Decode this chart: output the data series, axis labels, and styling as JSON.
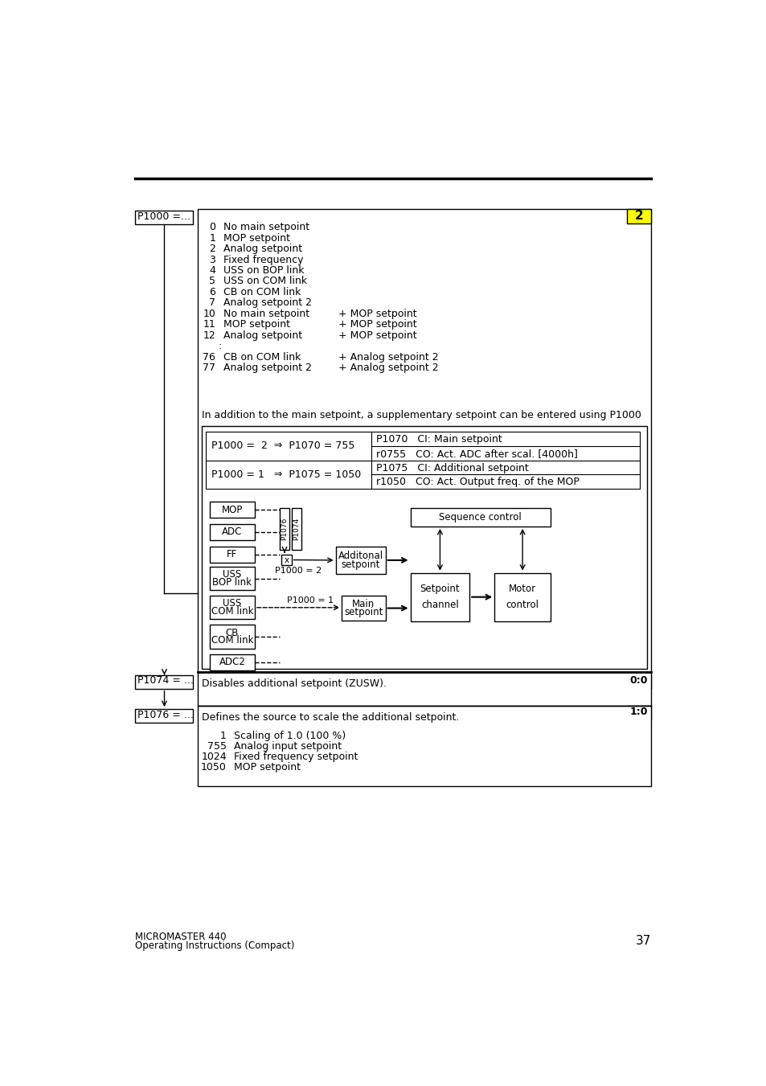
{
  "page_num": "37",
  "footer_left1": "MICROMASTER 440",
  "footer_left2": "Operating Instructions (Compact)",
  "p1000_label": "P1000 =...",
  "p1000_items": [
    [
      "0",
      "No main setpoint",
      "",
      ""
    ],
    [
      "1",
      "MOP setpoint",
      "",
      ""
    ],
    [
      "2",
      "Analog setpoint",
      "",
      ""
    ],
    [
      "3",
      "Fixed frequency",
      "",
      ""
    ],
    [
      "4",
      "USS on BOP link",
      "",
      ""
    ],
    [
      "5",
      "USS on COM link",
      "",
      ""
    ],
    [
      "6",
      "CB on COM link",
      "",
      ""
    ],
    [
      "7",
      "Analog setpoint 2",
      "",
      ""
    ],
    [
      "10",
      "No main setpoint",
      "+ MOP setpoint",
      ""
    ],
    [
      "11",
      "MOP setpoint",
      "+ MOP setpoint",
      ""
    ],
    [
      "12",
      "Analog setpoint",
      "+ MOP setpoint",
      ""
    ],
    [
      ":",
      "",
      "",
      ""
    ],
    [
      "76",
      "CB on COM link",
      "+ Analog setpoint 2",
      ""
    ],
    [
      "77",
      "Analog setpoint 2",
      "+ Analog setpoint 2",
      ""
    ]
  ],
  "addition_text": "In addition to the main setpoint, a supplementary setpoint can be entered using P1000",
  "badge_text": "2",
  "table_row1_left": "P1000 =  2  ⇒  P1070 = 755",
  "table_row1_right1": "P1070   CI: Main setpoint",
  "table_row1_right2": "r0755   CO: Act. ADC after scal. [4000h]",
  "table_row2_left": "P1000 = 1   ⇒  P1075 = 1050",
  "table_row2_right1": "P1075   CI: Additional setpoint",
  "table_row2_right2": "r1050   CO: Act. Output freq. of the MOP",
  "p1074_label": "P1074 = ...",
  "p1074_badge": "0:0",
  "p1074_text": "Disables additional setpoint (ZUSW).",
  "p1076_label": "P1076 = ...",
  "p1076_badge": "1:0",
  "p1076_text": "Defines the source to scale the additional setpoint.",
  "p1076_items": [
    [
      "1",
      "Scaling of 1.0 (100 %)"
    ],
    [
      "755",
      "Analog input setpoint"
    ],
    [
      "1024",
      "Fixed frequency setpoint"
    ],
    [
      "1050",
      "MOP setpoint"
    ]
  ],
  "bg_color": "#ffffff",
  "badge_bg": "#ffff00"
}
